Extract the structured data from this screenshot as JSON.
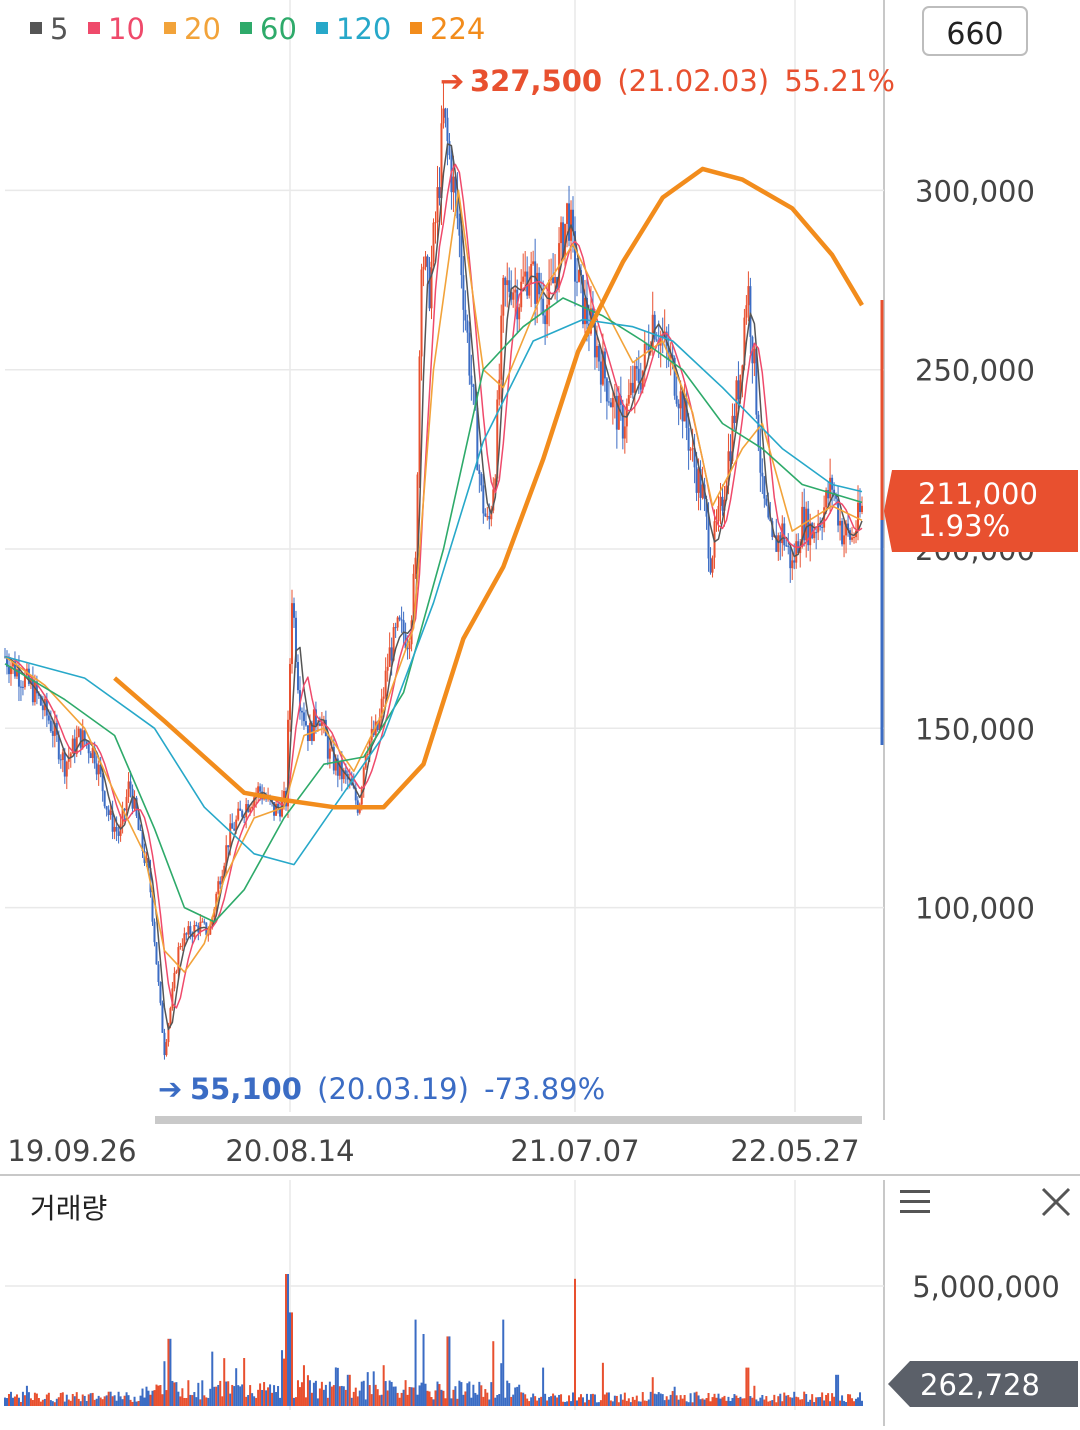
{
  "legend": [
    {
      "label": "5",
      "color": "#555555"
    },
    {
      "label": "10",
      "color": "#ef4a6b"
    },
    {
      "label": "20",
      "color": "#f2a33a"
    },
    {
      "label": "60",
      "color": "#2eaa6a"
    },
    {
      "label": "120",
      "color": "#27a8c9"
    },
    {
      "label": "224",
      "color": "#f28c1c"
    }
  ],
  "period_box": "660",
  "volume_title": "거래량",
  "menu_icon": "hamburger-menu-icon",
  "close_icon": "close-x-icon",
  "colors": {
    "up": "#e8502f",
    "down": "#3b6cc4",
    "grid": "#e9e9e9",
    "price_badge": "#e8502f",
    "volume_badge": "#5b6069"
  },
  "chart_data": [
    {
      "type": "candlestick",
      "title": "",
      "x_ticks": [
        "19.09.26",
        "20.08.14",
        "21.07.07",
        "22.05.27"
      ],
      "y_ticks": [
        "100,000",
        "150,000",
        "200,000",
        "250,000",
        "300,000"
      ],
      "ylim": [
        45000,
        345000
      ],
      "grid": true,
      "max_marker": {
        "price": "327,500",
        "date": "(21.02.03)",
        "pct": "55.21%"
      },
      "min_marker": {
        "price": "55,100",
        "date": "(20.03.19)",
        "pct": "-73.89%"
      },
      "current": {
        "price": "211,000",
        "pct": "1.93%"
      },
      "close_path": [
        [
          0,
          170000
        ],
        [
          15,
          165000
        ],
        [
          30,
          160000
        ],
        [
          45,
          152000
        ],
        [
          60,
          140000
        ],
        [
          75,
          148000
        ],
        [
          90,
          143000
        ],
        [
          105,
          125000
        ],
        [
          115,
          120000
        ],
        [
          125,
          135000
        ],
        [
          135,
          120000
        ],
        [
          145,
          108000
        ],
        [
          155,
          75000
        ],
        [
          160,
          60000
        ],
        [
          165,
          70000
        ],
        [
          175,
          90000
        ],
        [
          185,
          93000
        ],
        [
          195,
          95000
        ],
        [
          205,
          93000
        ],
        [
          215,
          108000
        ],
        [
          225,
          120000
        ],
        [
          240,
          128000
        ],
        [
          255,
          133000
        ],
        [
          270,
          127000
        ],
        [
          282,
          130000
        ],
        [
          288,
          188000
        ],
        [
          295,
          160000
        ],
        [
          305,
          148000
        ],
        [
          315,
          155000
        ],
        [
          325,
          143000
        ],
        [
          335,
          138000
        ],
        [
          345,
          135000
        ],
        [
          355,
          128000
        ],
        [
          362,
          145000
        ],
        [
          375,
          150000
        ],
        [
          385,
          170000
        ],
        [
          395,
          178000
        ],
        [
          405,
          175000
        ],
        [
          412,
          195000
        ],
        [
          418,
          285000
        ],
        [
          425,
          270000
        ],
        [
          435,
          300000
        ],
        [
          440,
          320000
        ],
        [
          448,
          305000
        ],
        [
          455,
          290000
        ],
        [
          462,
          265000
        ],
        [
          470,
          240000
        ],
        [
          478,
          215000
        ],
        [
          485,
          205000
        ],
        [
          492,
          225000
        ],
        [
          500,
          270000
        ],
        [
          508,
          275000
        ],
        [
          515,
          270000
        ],
        [
          525,
          278000
        ],
        [
          535,
          272000
        ],
        [
          545,
          268000
        ],
        [
          555,
          280000
        ],
        [
          565,
          295000
        ],
        [
          572,
          278000
        ],
        [
          580,
          268000
        ],
        [
          590,
          260000
        ],
        [
          600,
          250000
        ],
        [
          610,
          240000
        ],
        [
          620,
          235000
        ],
        [
          630,
          245000
        ],
        [
          640,
          250000
        ],
        [
          650,
          265000
        ],
        [
          660,
          258000
        ],
        [
          670,
          250000
        ],
        [
          680,
          240000
        ],
        [
          690,
          225000
        ],
        [
          700,
          215000
        ],
        [
          708,
          198000
        ],
        [
          718,
          210000
        ],
        [
          728,
          230000
        ],
        [
          738,
          250000
        ],
        [
          745,
          275000
        ],
        [
          752,
          250000
        ],
        [
          760,
          215000
        ],
        [
          770,
          200000
        ],
        [
          780,
          205000
        ],
        [
          790,
          195000
        ],
        [
          800,
          208000
        ],
        [
          810,
          205000
        ],
        [
          820,
          210000
        ],
        [
          830,
          218000
        ],
        [
          840,
          205000
        ],
        [
          850,
          203000
        ],
        [
          860,
          211000
        ]
      ],
      "ma_series": [
        {
          "period": "20",
          "points": [
            [
              0,
              170000
            ],
            [
              40,
              162000
            ],
            [
              80,
              150000
            ],
            [
              110,
              132000
            ],
            [
              140,
              115000
            ],
            [
              160,
              88000
            ],
            [
              180,
              82000
            ],
            [
              200,
              90000
            ],
            [
              220,
              108000
            ],
            [
              250,
              125000
            ],
            [
              280,
              128000
            ],
            [
              300,
              148000
            ],
            [
              320,
              150000
            ],
            [
              350,
              138000
            ],
            [
              380,
              155000
            ],
            [
              410,
              178000
            ],
            [
              430,
              250000
            ],
            [
              455,
              300000
            ],
            [
              480,
              250000
            ],
            [
              500,
              245000
            ],
            [
              540,
              272000
            ],
            [
              570,
              285000
            ],
            [
              600,
              268000
            ],
            [
              630,
              252000
            ],
            [
              660,
              258000
            ],
            [
              690,
              238000
            ],
            [
              710,
              212000
            ],
            [
              740,
              228000
            ],
            [
              760,
              235000
            ],
            [
              790,
              205000
            ],
            [
              830,
              212000
            ],
            [
              860,
              208000
            ]
          ]
        },
        {
          "period": "60",
          "points": [
            [
              0,
              168000
            ],
            [
              60,
              158000
            ],
            [
              110,
              148000
            ],
            [
              150,
              122000
            ],
            [
              180,
              100000
            ],
            [
              210,
              96000
            ],
            [
              240,
              105000
            ],
            [
              280,
              125000
            ],
            [
              320,
              140000
            ],
            [
              360,
              142000
            ],
            [
              400,
              160000
            ],
            [
              440,
              200000
            ],
            [
              480,
              250000
            ],
            [
              520,
              262000
            ],
            [
              560,
              270000
            ],
            [
              600,
              265000
            ],
            [
              640,
              258000
            ],
            [
              680,
              250000
            ],
            [
              720,
              235000
            ],
            [
              760,
              228000
            ],
            [
              800,
              218000
            ],
            [
              860,
              213000
            ]
          ]
        },
        {
          "period": "120",
          "points": [
            [
              0,
              170000
            ],
            [
              80,
              164000
            ],
            [
              150,
              150000
            ],
            [
              200,
              128000
            ],
            [
              250,
              115000
            ],
            [
              290,
              112000
            ],
            [
              330,
              128000
            ],
            [
              380,
              148000
            ],
            [
              430,
              185000
            ],
            [
              480,
              230000
            ],
            [
              530,
              258000
            ],
            [
              580,
              264000
            ],
            [
              630,
              262000
            ],
            [
              670,
              258000
            ],
            [
              720,
              245000
            ],
            [
              780,
              228000
            ],
            [
              830,
              218000
            ],
            [
              860,
              216000
            ]
          ]
        },
        {
          "period": "224",
          "points": [
            [
              110,
              164000
            ],
            [
              160,
              152000
            ],
            [
              200,
              142000
            ],
            [
              240,
              132000
            ],
            [
              280,
              130000
            ],
            [
              330,
              128000
            ],
            [
              380,
              128000
            ],
            [
              420,
              140000
            ],
            [
              460,
              175000
            ],
            [
              500,
              195000
            ],
            [
              540,
              225000
            ],
            [
              575,
              255000
            ],
            [
              620,
              280000
            ],
            [
              660,
              298000
            ],
            [
              700,
              306000
            ],
            [
              740,
              303000
            ],
            [
              790,
              295000
            ],
            [
              830,
              282000
            ],
            [
              860,
              268000
            ]
          ]
        }
      ]
    },
    {
      "type": "bar",
      "title": "거래량",
      "y_ticks": [
        "5,000,000"
      ],
      "ylim": [
        0,
        7500000
      ],
      "current_volume": "262,728",
      "spikes": [
        {
          "x": 165,
          "value": 2800000
        },
        {
          "x": 240,
          "value": 2000000
        },
        {
          "x": 283,
          "value": 5500000
        },
        {
          "x": 287,
          "value": 3900000
        },
        {
          "x": 300,
          "value": 1700000
        },
        {
          "x": 345,
          "value": 1300000
        },
        {
          "x": 380,
          "value": 1700000
        },
        {
          "x": 412,
          "value": 3600000
        },
        {
          "x": 420,
          "value": 3000000
        },
        {
          "x": 445,
          "value": 2900000
        },
        {
          "x": 490,
          "value": 2700000
        },
        {
          "x": 500,
          "value": 3600000
        },
        {
          "x": 540,
          "value": 1600000
        },
        {
          "x": 572,
          "value": 5300000
        },
        {
          "x": 600,
          "value": 1800000
        },
        {
          "x": 650,
          "value": 1200000
        },
        {
          "x": 745,
          "value": 1600000
        },
        {
          "x": 835,
          "value": 1300000
        }
      ]
    }
  ]
}
